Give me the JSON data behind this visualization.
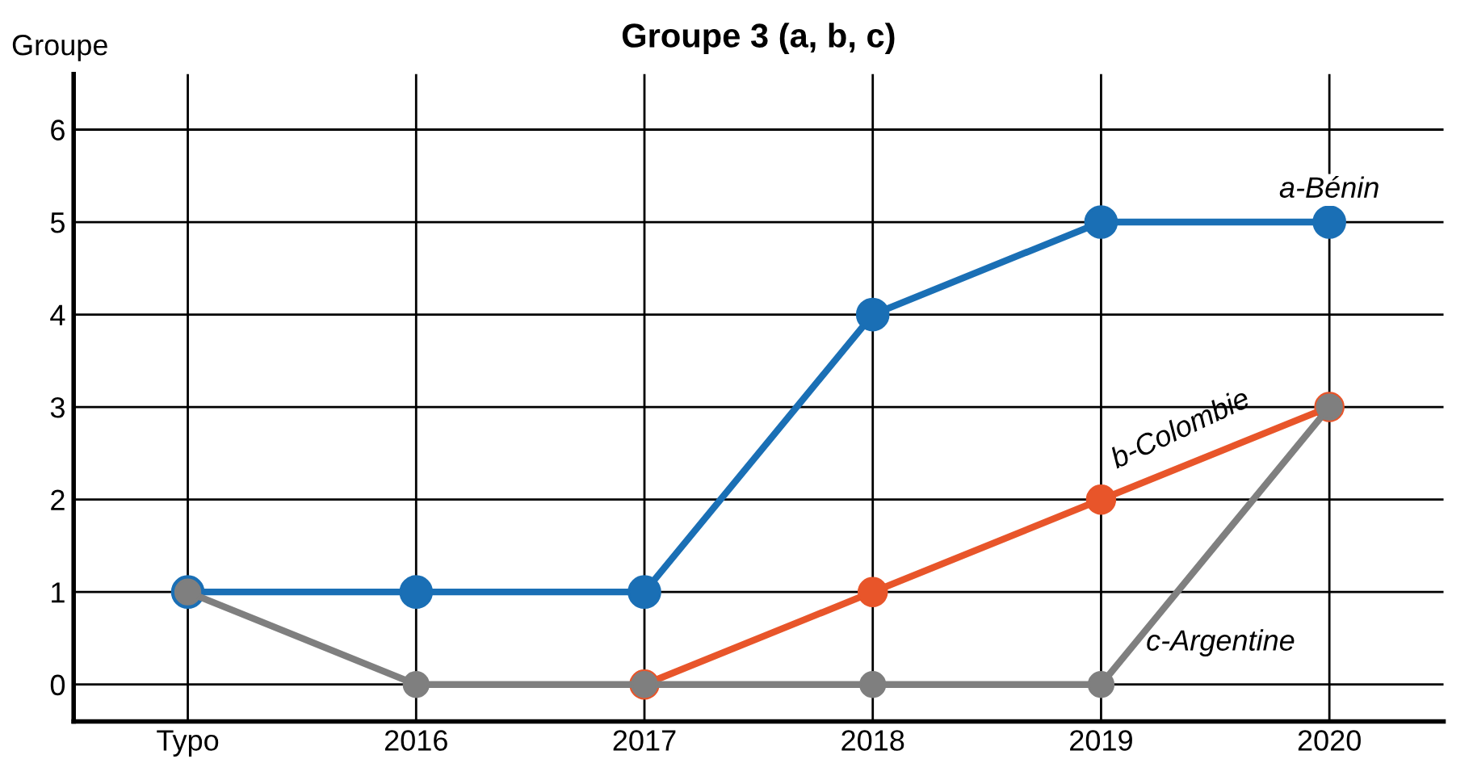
{
  "chart_data": {
    "type": "line",
    "title": "Groupe 3 (a, b, c)",
    "ylabel": "Groupe",
    "categories": [
      "Typo",
      "2016",
      "2017",
      "2018",
      "2019",
      "2020"
    ],
    "series": [
      {
        "name": "a-Bénin",
        "color": "#1a6fb5",
        "values": [
          1,
          1,
          1,
          4,
          5,
          5
        ]
      },
      {
        "name": "b-Colombie",
        "color": "#e8552a",
        "values": [
          null,
          null,
          0,
          1,
          2,
          3
        ]
      },
      {
        "name": "c-Argentine",
        "color": "#7f7f7f",
        "values": [
          1,
          0,
          0,
          0,
          0,
          3
        ]
      }
    ],
    "ylim": [
      -0.4,
      6.6
    ],
    "yticks": [
      0,
      1,
      2,
      3,
      4,
      5,
      6
    ],
    "grid": true,
    "legend": false,
    "marker": "circle",
    "line_style": "solid"
  }
}
